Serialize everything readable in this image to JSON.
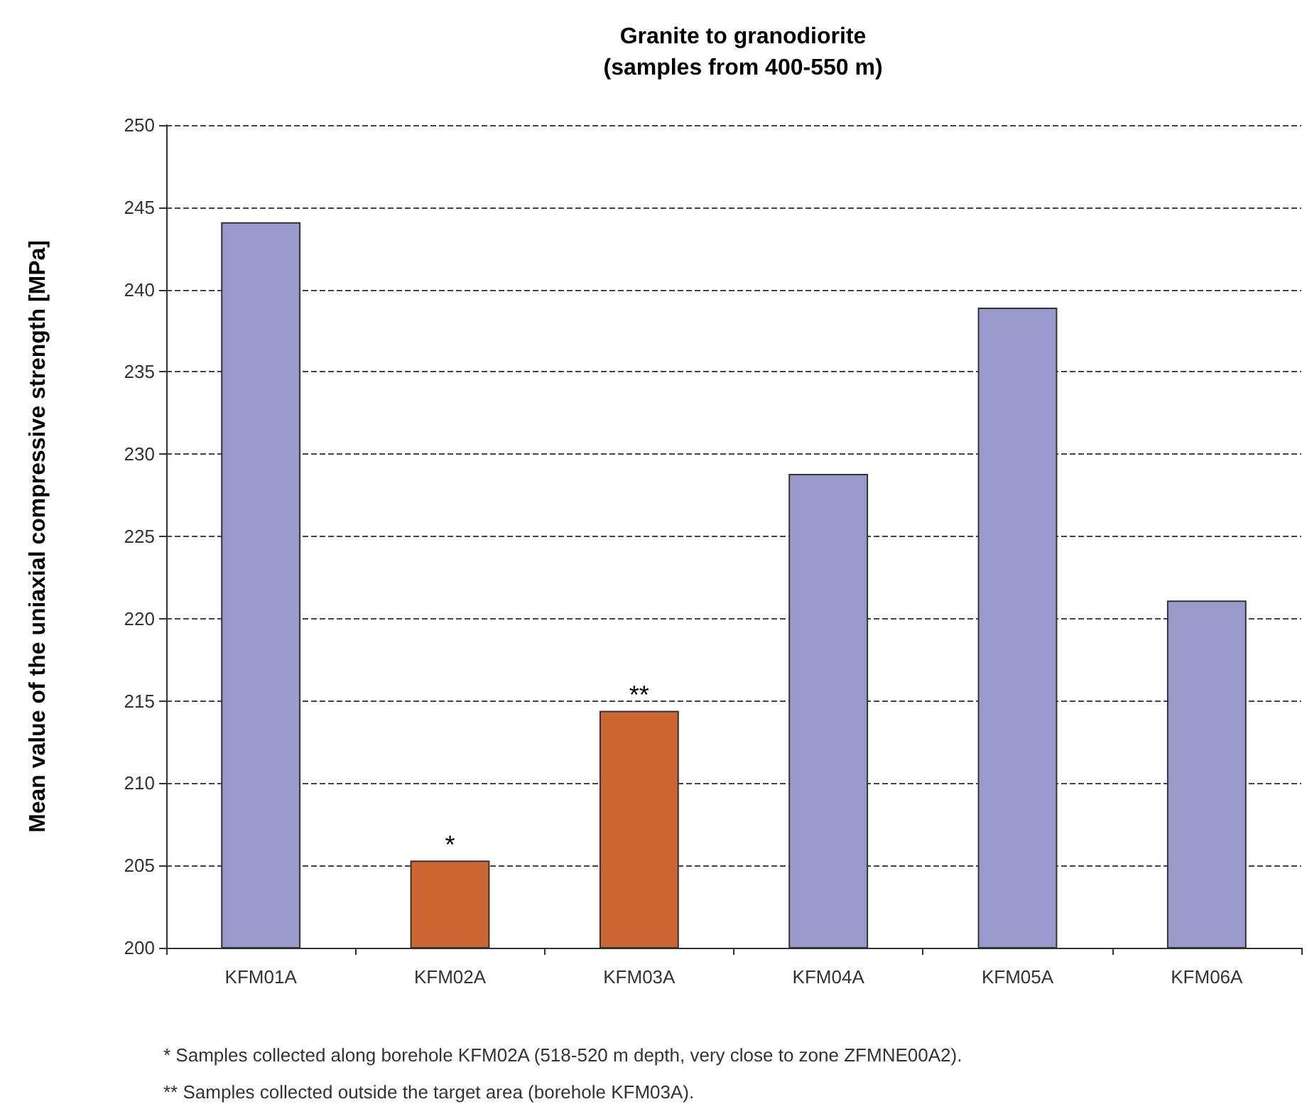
{
  "chart_data": {
    "type": "bar",
    "title": "Granite to granodiorite\n(samples from 400-550 m)",
    "ylabel": "Mean value of the uniaxial compressive strength [MPa]",
    "categories": [
      "KFM01A",
      "KFM02A",
      "KFM03A",
      "KFM04A",
      "KFM05A",
      "KFM06A"
    ],
    "values": [
      244.1,
      205.3,
      214.4,
      228.8,
      238.9,
      221.1
    ],
    "colors": [
      "#9999cc",
      "#cc6633",
      "#cc6633",
      "#9999cc",
      "#9999cc",
      "#9999cc"
    ],
    "ylim": [
      200,
      250
    ],
    "yticks": [
      200,
      205,
      210,
      215,
      220,
      225,
      230,
      235,
      240,
      245,
      250
    ],
    "grid": "y",
    "annotations": [
      {
        "text": "*",
        "x": "KFM02A",
        "y": 205.3
      },
      {
        "text": "**",
        "x": "KFM03A",
        "y": 214.4
      },
      "* Samples collected along borehole KFM02A (518-520 m depth, very close to zone ZFMNE00A2).",
      "** Samples collected outside the target area (borehole KFM03A)."
    ]
  }
}
